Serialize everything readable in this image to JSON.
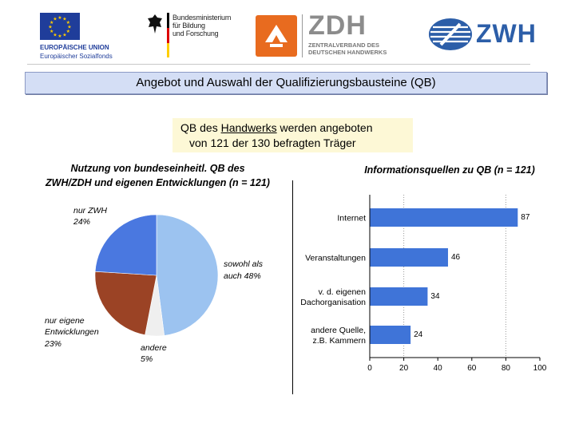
{
  "logos": {
    "eu_line1": "EUROPÄISCHE UNION",
    "eu_line2": "Europäischer Sozialfonds",
    "bmbf_line1": "Bundesministerium",
    "bmbf_line2": "für Bildung",
    "bmbf_line3": "und Forschung",
    "zdh_big": "ZDH",
    "zdh_sub1": "ZENTRALVERBAND DES",
    "zdh_sub2": "DEUTSCHEN HANDWERKS",
    "zwh_text": "ZWH"
  },
  "title": "Angebot und Auswahl der Qualifizierungsbausteine (QB)",
  "summary": {
    "line1_pre": "QB des ",
    "line1_underlined": "Handwerks",
    "line1_post": " werden angeboten",
    "line2": "von 121 der 130 befragten Träger"
  },
  "colors": {
    "pie_blue": "#4a78e0",
    "pie_lightblue": "#9cc3f0",
    "pie_white": "#efefef",
    "pie_brown": "#9b4325",
    "bar": "#3f74d8",
    "title_band": "#d4def5",
    "summary_box": "#fdf8d6"
  },
  "chart_data": [
    {
      "type": "pie",
      "title_line1": "Nutzung von bundeseinheitl. QB des",
      "title_line2": "ZWH/ZDH und eigenen Entwicklungen (n = 121)",
      "slices": [
        {
          "label_line1": "nur ZWH",
          "label_line2": "24%",
          "value": 24,
          "color": "#4a78e0"
        },
        {
          "label_line1": "sowohl als",
          "label_line2": "auch 48%",
          "value": 48,
          "color": "#9cc3f0"
        },
        {
          "label_line1": "andere",
          "label_line2": "5%",
          "value": 5,
          "color": "#efefef"
        },
        {
          "label_line1": "nur eigene",
          "label_line2": "Entwicklungen",
          "label_line3": "23%",
          "value": 23,
          "color": "#9b4325"
        }
      ]
    },
    {
      "type": "bar",
      "orientation": "horizontal",
      "title": "Informationsquellen zu QB (n = 121)",
      "categories": [
        [
          "Internet"
        ],
        [
          "Veranstaltungen"
        ],
        [
          "v. d. eigenen",
          "Dachorganisation"
        ],
        [
          "andere Quelle,",
          "z.B. Kammern"
        ]
      ],
      "values": [
        87,
        46,
        34,
        24
      ],
      "value_labels": [
        "87",
        "46",
        "34",
        "24"
      ],
      "xlim": [
        0,
        100
      ],
      "xticks": [
        "0",
        "20",
        "40",
        "60",
        "80",
        "100"
      ],
      "grid": "dashed vertical at 20 and 80"
    }
  ]
}
